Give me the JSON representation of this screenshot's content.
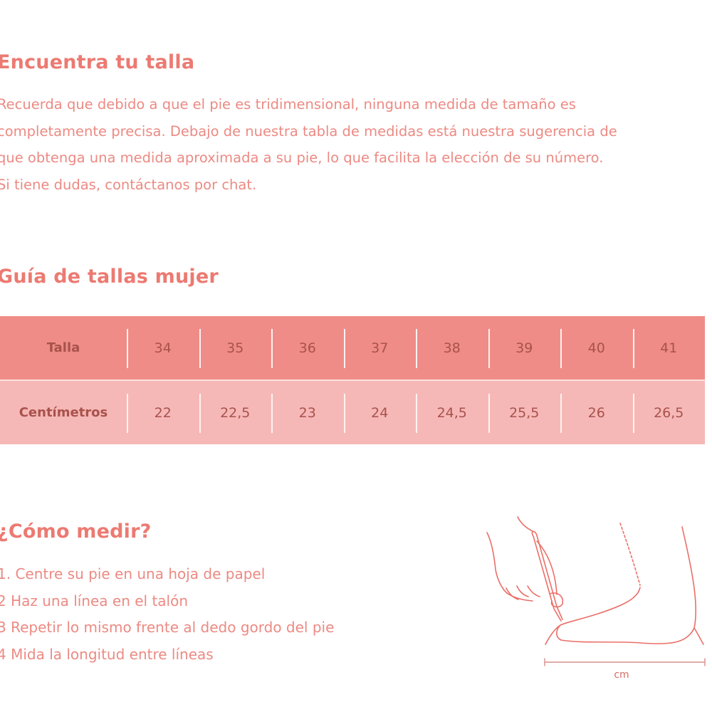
{
  "intro": {
    "title": "Encuentra tu talla",
    "paragraph_lines": [
      "Recuerda que debido a que el pie es tridimensional, ninguna medida de tamaño es",
      "completamente precisa. Debajo de nuestra tabla de medidas está nuestra sugerencia de",
      "que obtenga una medida aproximada a su pie, lo que facilita la elección de su número.",
      "Si tiene dudas, contáctanos por chat."
    ]
  },
  "size_guide": {
    "title": "Guía de tallas mujer",
    "rows": [
      {
        "label": "Talla",
        "values": [
          "34",
          "35",
          "36",
          "37",
          "38",
          "39",
          "40",
          "41"
        ]
      },
      {
        "label": "Centímetros",
        "values": [
          "22",
          "22,5",
          "23",
          "24",
          "24,5",
          "25,5",
          "26",
          "26,5"
        ]
      }
    ],
    "colors": {
      "header_row": "#f08c87",
      "second_row": "#f6b8b6",
      "accent_text": "#ec7a72"
    }
  },
  "how_to": {
    "title": "¿Cómo medir?",
    "steps": [
      "1. Centre su pie en una hoja de papel",
      "2 Haz una línea en el talón",
      "3 Repetir lo mismo frente al dedo gordo del pie",
      "4 Mida la longitud entre líneas"
    ],
    "illustration_label": "cm"
  }
}
